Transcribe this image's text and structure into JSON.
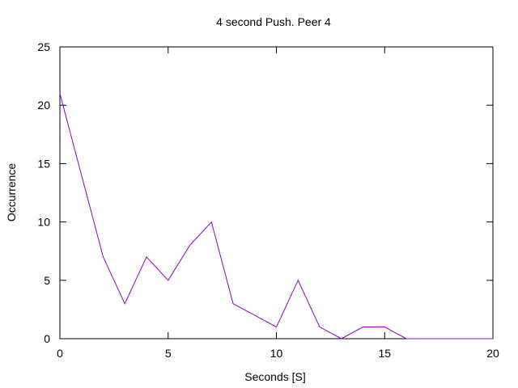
{
  "chart_data": {
    "type": "line",
    "title": "4 second Push. Peer 4",
    "xlabel": "Seconds [S]",
    "ylabel": "Occurrence",
    "xlim": [
      0,
      20
    ],
    "ylim": [
      0,
      25
    ],
    "x_ticks": [
      0,
      5,
      10,
      15,
      20
    ],
    "y_ticks": [
      0,
      5,
      10,
      15,
      20,
      25
    ],
    "grid": false,
    "series": [
      {
        "color": "#9400d3",
        "x": [
          0,
          1,
          2,
          3,
          4,
          5,
          6,
          7,
          8,
          9,
          10,
          11,
          12,
          13,
          14,
          15,
          16,
          17,
          18,
          19,
          20
        ],
        "y": [
          21,
          14,
          7,
          3,
          7,
          5,
          8,
          10,
          3,
          2,
          1,
          5,
          1,
          0,
          1,
          1,
          0,
          0,
          0,
          0,
          0
        ]
      }
    ]
  }
}
